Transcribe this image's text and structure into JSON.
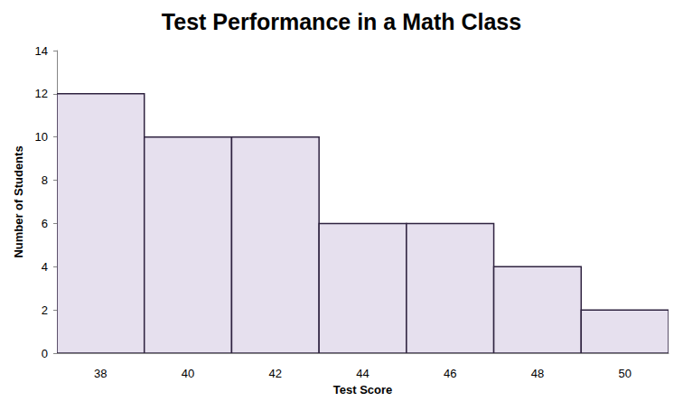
{
  "chart_data": {
    "type": "histogram",
    "title": "Test Performance in a Math Class",
    "x_label": "Test Score",
    "y_label": "Number of Students",
    "bins": [
      37,
      39,
      41,
      43,
      45,
      47,
      49,
      51
    ],
    "counts": [
      12,
      10,
      10,
      6,
      6,
      4,
      2
    ],
    "color": "#e6e0ee",
    "xlim": [
      37,
      51
    ],
    "xticks": [
      38,
      40,
      42,
      44,
      46,
      48,
      50
    ],
    "ylim": [
      0,
      14
    ],
    "yticks": [
      0,
      2,
      4,
      6,
      8,
      10,
      12,
      14
    ],
    "grid": false
  }
}
